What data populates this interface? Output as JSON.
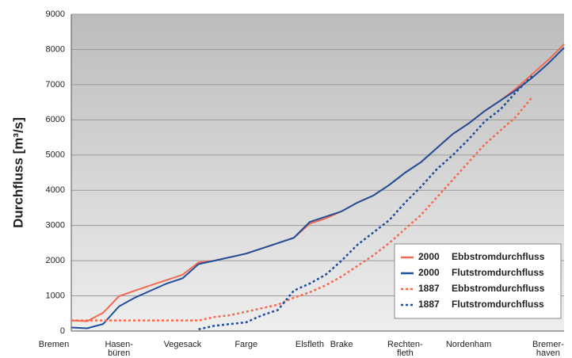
{
  "chart_data": {
    "type": "line",
    "y_label": "Durchfluss  [m³/s]",
    "categories": [
      "Bremen",
      null,
      null,
      "Hasen-\nbüren",
      null,
      null,
      null,
      "Vegesack",
      null,
      null,
      null,
      "Farge",
      null,
      null,
      null,
      "Elsfleth",
      null,
      "Brake",
      null,
      null,
      null,
      "Rechten-\nfleth",
      null,
      null,
      null,
      "Nordenham",
      null,
      null,
      null,
      null,
      "Bremer-\nhaven",
      null
    ],
    "ylim": [
      0,
      9000
    ],
    "yticks": [
      0,
      1000,
      2000,
      3000,
      4000,
      5000,
      6000,
      7000,
      8000,
      9000
    ],
    "grid": true,
    "legend": "lower right",
    "series": [
      {
        "name": "2000 Ebbstromdurchfluss",
        "color": "#f26b4f",
        "dash": false,
        "values": [
          300,
          280,
          520,
          990,
          1150,
          1300,
          1450,
          1600,
          1950,
          2000,
          2100,
          2200,
          2350,
          2500,
          2650,
          3050,
          3200,
          3400,
          3650,
          3850,
          4150,
          4500,
          4800,
          5200,
          5600,
          5900,
          6250,
          6550,
          6900,
          7300,
          7700,
          8150
        ]
      },
      {
        "name": "2000 Flutstromdurchfluss",
        "color": "#1f4e9a",
        "dash": false,
        "values": [
          100,
          80,
          200,
          700,
          950,
          1150,
          1350,
          1500,
          1900,
          2000,
          2100,
          2200,
          2350,
          2500,
          2650,
          3100,
          3250,
          3400,
          3650,
          3850,
          4150,
          4500,
          4800,
          5200,
          5600,
          5900,
          6250,
          6550,
          6850,
          7200,
          7600,
          8050
        ]
      },
      {
        "name": "1887 Ebbstromdurchfluss",
        "color": "#f26b4f",
        "dash": true,
        "values": [
          300,
          300,
          300,
          300,
          300,
          300,
          300,
          300,
          300,
          400,
          450,
          550,
          650,
          750,
          950,
          1100,
          1300,
          1550,
          1850,
          2150,
          2500,
          2900,
          3300,
          3800,
          4300,
          4800,
          5300,
          5700,
          6100,
          6650,
          null,
          null
        ]
      },
      {
        "name": "1887 Flutstromdurchfluss",
        "color": "#1f4e9a",
        "dash": true,
        "values": [
          null,
          null,
          null,
          null,
          null,
          null,
          null,
          null,
          50,
          150,
          200,
          250,
          450,
          600,
          1150,
          1350,
          1600,
          2000,
          2450,
          2800,
          3150,
          3650,
          4100,
          4600,
          5000,
          5450,
          5950,
          6300,
          6800,
          7250,
          null,
          null
        ]
      }
    ]
  }
}
